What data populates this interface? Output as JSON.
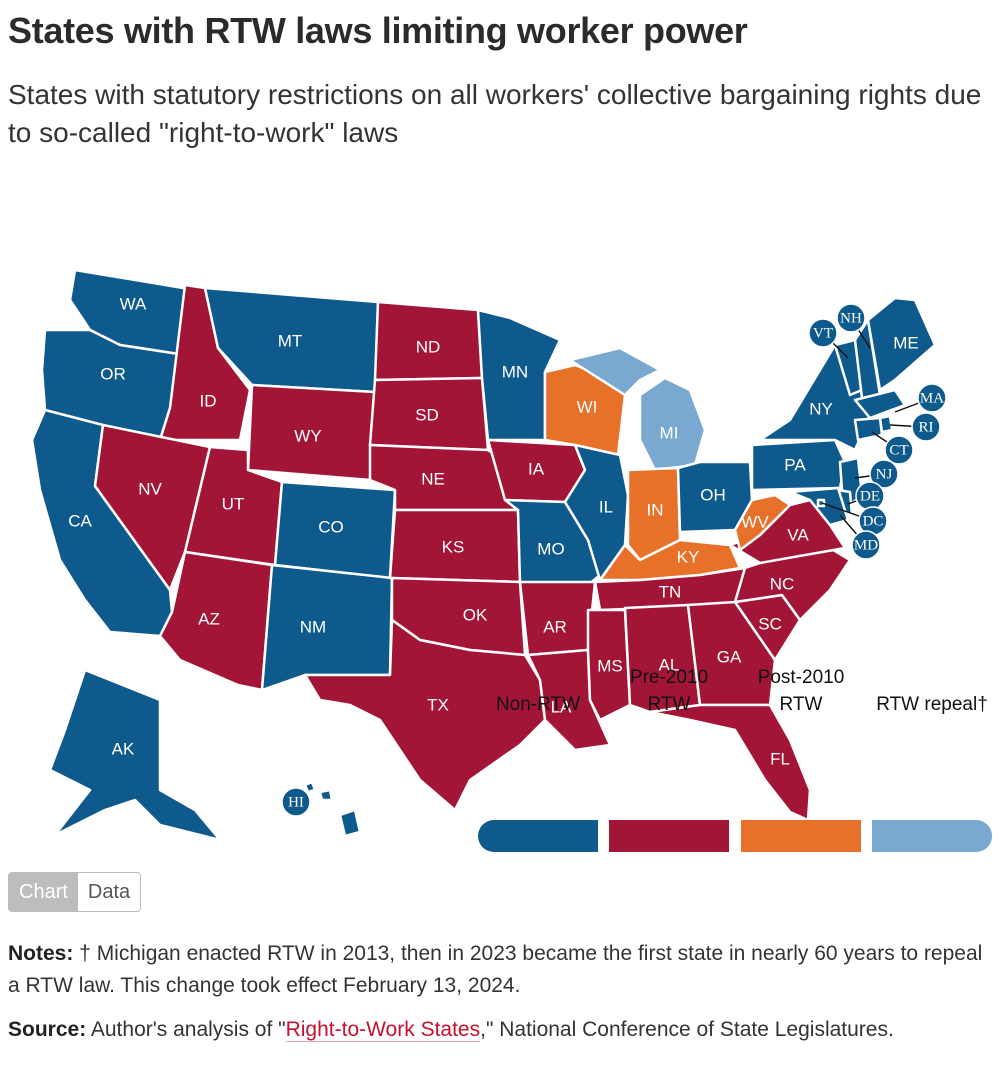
{
  "header": {
    "title": "States with RTW laws limiting worker power",
    "subtitle": "States with statutory restrictions on all workers' collective bargaining rights due to so-called \"right-to-work\" laws"
  },
  "colors": {
    "non_rtw": "#0f5a8c",
    "pre_2010": "#a31537",
    "post_2010": "#e8712a",
    "repeal": "#79a9d0"
  },
  "legend": [
    {
      "label": "Non-RTW",
      "category": "non_rtw"
    },
    {
      "label": "Pre-2010 RTW",
      "category": "pre_2010"
    },
    {
      "label": "Post-2010 RTW",
      "category": "post_2010"
    },
    {
      "label": "RTW repeal†",
      "category": "repeal"
    }
  ],
  "states": {
    "WA": "non_rtw",
    "OR": "non_rtw",
    "CA": "non_rtw",
    "MT": "non_rtw",
    "CO": "non_rtw",
    "NM": "non_rtw",
    "MN": "non_rtw",
    "MO": "non_rtw",
    "IL": "non_rtw",
    "OH": "non_rtw",
    "PA": "non_rtw",
    "NY": "non_rtw",
    "ME": "non_rtw",
    "VT": "non_rtw",
    "NH": "non_rtw",
    "MA": "non_rtw",
    "RI": "non_rtw",
    "CT": "non_rtw",
    "NJ": "non_rtw",
    "DE": "non_rtw",
    "MD": "non_rtw",
    "DC": "non_rtw",
    "AK": "non_rtw",
    "HI": "non_rtw",
    "ID": "pre_2010",
    "NV": "pre_2010",
    "UT": "pre_2010",
    "AZ": "pre_2010",
    "WY": "pre_2010",
    "ND": "pre_2010",
    "SD": "pre_2010",
    "NE": "pre_2010",
    "KS": "pre_2010",
    "OK": "pre_2010",
    "TX": "pre_2010",
    "IA": "pre_2010",
    "AR": "pre_2010",
    "LA": "pre_2010",
    "MS": "pre_2010",
    "AL": "pre_2010",
    "TN": "pre_2010",
    "GA": "pre_2010",
    "FL": "pre_2010",
    "SC": "pre_2010",
    "NC": "pre_2010",
    "VA": "pre_2010",
    "WI": "post_2010",
    "IN": "post_2010",
    "KY": "post_2010",
    "WV": "post_2010",
    "MI": "repeal"
  },
  "toggle": {
    "chart": "Chart",
    "data": "Data"
  },
  "notes": {
    "label": "Notes:",
    "text": " † Michigan enacted RTW in 2013, then in 2023 became the first state in nearly 60 years to repeal a RTW law. This change took effect February 13, 2024."
  },
  "source": {
    "label": "Source:",
    "pre": " Author's analysis of \"",
    "link": "Right-to-Work States",
    "post": ",\" National Conference of State Legislatures."
  }
}
